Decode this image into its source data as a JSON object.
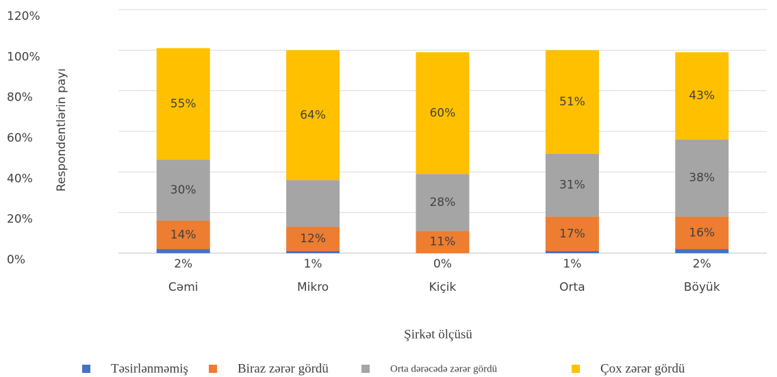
{
  "chart_data": {
    "type": "stacked_bar",
    "y_label": "Respondentlərin payı",
    "x_label": "Şirkət ölçüsü",
    "categories": [
      "Cəmi",
      "Mikro",
      "Kiçik",
      "Orta",
      "Böyük"
    ],
    "series": [
      {
        "name": "Təsirlənməmiş",
        "color": "#4472c4",
        "values": [
          2,
          1,
          0,
          1,
          2
        ],
        "value_labels": [
          "2%",
          "1%",
          "0%",
          "1%",
          "2%"
        ]
      },
      {
        "name": "Biraz zərər gördü",
        "color": "#ed7d31",
        "values": [
          14,
          12,
          11,
          17,
          16
        ],
        "value_labels": [
          "14%",
          "12%",
          "11%",
          "17%",
          "16%"
        ]
      },
      {
        "name": "Orta dərəcədə zərər gördü",
        "color": "#a5a5a5",
        "values": [
          30,
          23,
          28,
          31,
          38
        ],
        "value_labels": [
          "30%",
          null,
          "28%",
          "31%",
          "38%"
        ]
      },
      {
        "name": "Çox zərər gördü",
        "color": "#ffc000",
        "values": [
          55,
          64,
          60,
          51,
          43
        ],
        "value_labels": [
          "55%",
          "64%",
          "60%",
          "51%",
          "43%"
        ]
      }
    ],
    "ylim": [
      0,
      120
    ],
    "yticks": [
      {
        "value": 0,
        "label": "0%"
      },
      {
        "value": 20,
        "label": "20%"
      },
      {
        "value": 40,
        "label": "40%"
      },
      {
        "value": 60,
        "label": "60%"
      },
      {
        "value": 80,
        "label": "80%"
      },
      {
        "value": 100,
        "label": "100%"
      },
      {
        "value": 120,
        "label": "120%"
      }
    ],
    "grid": true,
    "legend": "bottom"
  }
}
